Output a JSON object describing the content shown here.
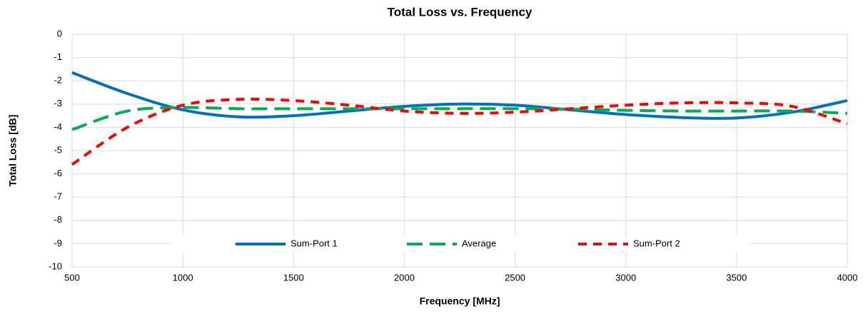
{
  "chart_data": {
    "type": "line",
    "title": "Total Loss vs. Frequency",
    "x_label": "Frequency [MHz]",
    "y_label": "Total Loss [dB]",
    "x": [
      500,
      750,
      1000,
      1250,
      1500,
      1750,
      2000,
      2250,
      2500,
      2750,
      3000,
      3250,
      3500,
      3750,
      4000
    ],
    "series": [
      {
        "name": "Sum-Port 1",
        "color": "#0070c0",
        "dash": "solid",
        "values": [
          -1.65,
          -2.55,
          -3.25,
          -3.55,
          -3.5,
          -3.3,
          -3.1,
          -3.0,
          -3.05,
          -3.25,
          -3.45,
          -3.58,
          -3.6,
          -3.35,
          -2.85
        ]
      },
      {
        "name": "Average",
        "color": "#00b050",
        "dash": "long",
        "values": [
          -4.1,
          -3.3,
          -3.15,
          -3.2,
          -3.2,
          -3.2,
          -3.2,
          -3.2,
          -3.2,
          -3.22,
          -3.27,
          -3.3,
          -3.3,
          -3.3,
          -3.4
        ]
      },
      {
        "name": "Sum-Port 2",
        "color": "#ff0000",
        "dash": "short",
        "values": [
          -5.6,
          -4.0,
          -3.05,
          -2.8,
          -2.85,
          -3.05,
          -3.3,
          -3.4,
          -3.35,
          -3.2,
          -3.05,
          -2.95,
          -2.95,
          -3.1,
          -3.85
        ]
      }
    ],
    "xlim": [
      500,
      4000
    ],
    "xticks": [
      500,
      1000,
      1500,
      2000,
      2500,
      3000,
      3500,
      4000
    ],
    "ylim": [
      -10,
      0
    ],
    "yticks": [
      0,
      -1,
      -2,
      -3,
      -4,
      -5,
      -6,
      -7,
      -8,
      -9,
      -10
    ],
    "grid": true,
    "legend": "bottom"
  }
}
